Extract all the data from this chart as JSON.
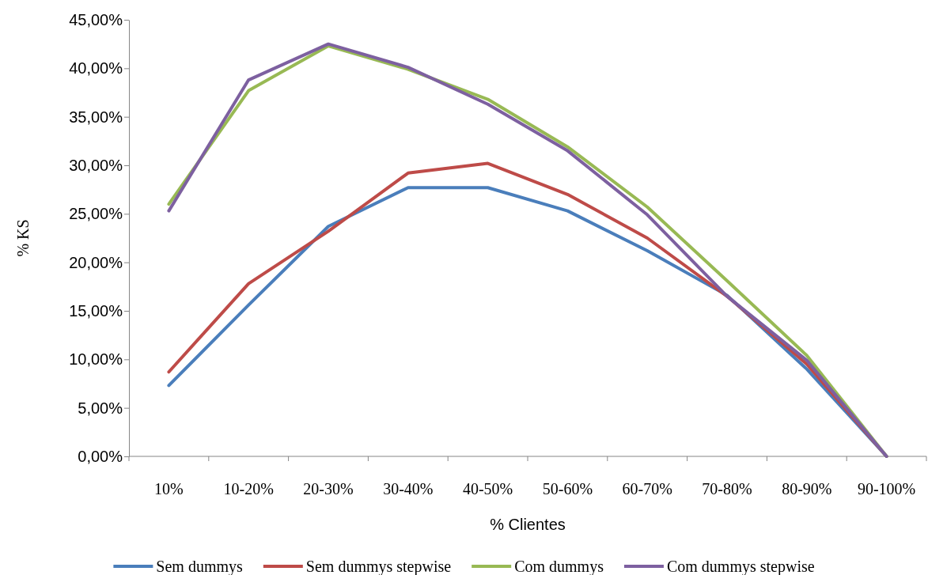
{
  "chart_data": {
    "type": "line",
    "xlabel": "% Clientes",
    "ylabel": "% KS",
    "categories": [
      "10%",
      "10-20%",
      "20-30%",
      "30-40%",
      "40-50%",
      "50-60%",
      "60-70%",
      "70-80%",
      "80-90%",
      "90-100%"
    ],
    "series": [
      {
        "name": "Sem dummys",
        "color": "#4a7ebb",
        "values": [
          7.3,
          15.6,
          23.7,
          27.7,
          27.7,
          25.3,
          21.2,
          16.6,
          9.0,
          0
        ]
      },
      {
        "name": "Sem dummys stepwise",
        "color": "#be4b48",
        "values": [
          8.7,
          17.8,
          23.2,
          29.2,
          30.2,
          27.0,
          22.5,
          16.5,
          9.5,
          0
        ]
      },
      {
        "name": "Com dummys",
        "color": "#98b954",
        "values": [
          26.0,
          37.7,
          42.3,
          39.9,
          36.8,
          31.9,
          25.7,
          18.1,
          10.4,
          0
        ]
      },
      {
        "name": "Com dummys stepwise",
        "color": "#7d60a0",
        "values": [
          25.3,
          38.8,
          42.5,
          40.1,
          36.3,
          31.5,
          24.9,
          16.5,
          9.9,
          0
        ]
      }
    ],
    "ylim": [
      0,
      45
    ],
    "yticks": [
      {
        "value": 0,
        "label": "0,00%"
      },
      {
        "value": 5,
        "label": "5,00%"
      },
      {
        "value": 10,
        "label": "10,00%"
      },
      {
        "value": 15,
        "label": "15,00%"
      },
      {
        "value": 20,
        "label": "20,00%"
      },
      {
        "value": 25,
        "label": "25,00%"
      },
      {
        "value": 30,
        "label": "30,00%"
      },
      {
        "value": 35,
        "label": "35,00%"
      },
      {
        "value": 40,
        "label": "40,00%"
      },
      {
        "value": 45,
        "label": "45,00%"
      }
    ],
    "grid": false,
    "legend": "bottom",
    "marker": "none",
    "line_style": "solid"
  }
}
